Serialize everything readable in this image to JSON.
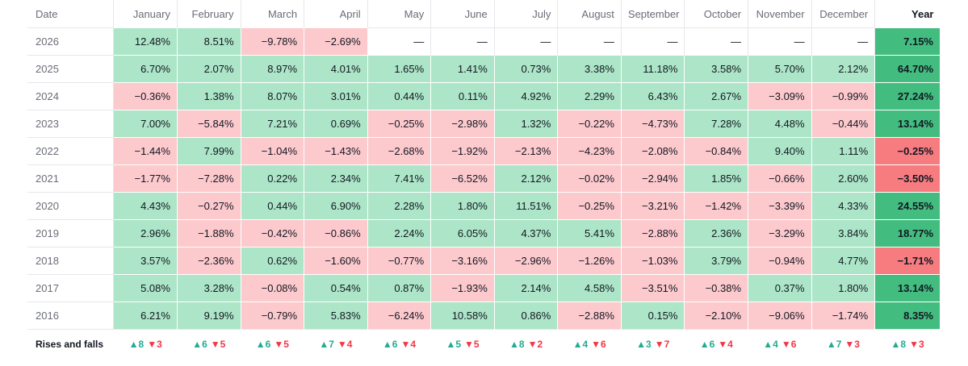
{
  "chart_data": {
    "type": "table",
    "header": {
      "date": "Date",
      "months": [
        "January",
        "February",
        "March",
        "April",
        "May",
        "June",
        "July",
        "August",
        "September",
        "October",
        "November",
        "December"
      ],
      "year": "Year"
    },
    "rows": [
      {
        "year": "2026",
        "months": [
          "12.48%",
          "8.51%",
          "−9.78%",
          "−2.69%",
          "—",
          "—",
          "—",
          "—",
          "—",
          "—",
          "—",
          "—"
        ],
        "total": "7.15%"
      },
      {
        "year": "2025",
        "months": [
          "6.70%",
          "2.07%",
          "8.97%",
          "4.01%",
          "1.65%",
          "1.41%",
          "0.73%",
          "3.38%",
          "11.18%",
          "3.58%",
          "5.70%",
          "2.12%"
        ],
        "total": "64.70%"
      },
      {
        "year": "2024",
        "months": [
          "−0.36%",
          "1.38%",
          "8.07%",
          "3.01%",
          "0.44%",
          "0.11%",
          "4.92%",
          "2.29%",
          "6.43%",
          "2.67%",
          "−3.09%",
          "−0.99%"
        ],
        "total": "27.24%"
      },
      {
        "year": "2023",
        "months": [
          "7.00%",
          "−5.84%",
          "7.21%",
          "0.69%",
          "−0.25%",
          "−2.98%",
          "1.32%",
          "−0.22%",
          "−4.73%",
          "7.28%",
          "4.48%",
          "−0.44%"
        ],
        "total": "13.14%"
      },
      {
        "year": "2022",
        "months": [
          "−1.44%",
          "7.99%",
          "−1.04%",
          "−1.43%",
          "−2.68%",
          "−1.92%",
          "−2.13%",
          "−4.23%",
          "−2.08%",
          "−0.84%",
          "9.40%",
          "1.11%"
        ],
        "total": "−0.25%"
      },
      {
        "year": "2021",
        "months": [
          "−1.77%",
          "−7.28%",
          "0.22%",
          "2.34%",
          "7.41%",
          "−6.52%",
          "2.12%",
          "−0.02%",
          "−2.94%",
          "1.85%",
          "−0.66%",
          "2.60%"
        ],
        "total": "−3.50%"
      },
      {
        "year": "2020",
        "months": [
          "4.43%",
          "−0.27%",
          "0.44%",
          "6.90%",
          "2.28%",
          "1.80%",
          "11.51%",
          "−0.25%",
          "−3.21%",
          "−1.42%",
          "−3.39%",
          "4.33%"
        ],
        "total": "24.55%"
      },
      {
        "year": "2019",
        "months": [
          "2.96%",
          "−1.88%",
          "−0.42%",
          "−0.86%",
          "2.24%",
          "6.05%",
          "4.37%",
          "5.41%",
          "−2.88%",
          "2.36%",
          "−3.29%",
          "3.84%"
        ],
        "total": "18.77%"
      },
      {
        "year": "2018",
        "months": [
          "3.57%",
          "−2.36%",
          "0.62%",
          "−1.60%",
          "−0.77%",
          "−3.16%",
          "−2.96%",
          "−1.26%",
          "−1.03%",
          "3.79%",
          "−0.94%",
          "4.77%"
        ],
        "total": "−1.71%"
      },
      {
        "year": "2017",
        "months": [
          "5.08%",
          "3.28%",
          "−0.08%",
          "0.54%",
          "0.87%",
          "−1.93%",
          "2.14%",
          "4.58%",
          "−3.51%",
          "−0.38%",
          "0.37%",
          "1.80%"
        ],
        "total": "13.14%"
      },
      {
        "year": "2016",
        "months": [
          "6.21%",
          "9.19%",
          "−0.79%",
          "5.83%",
          "−6.24%",
          "10.58%",
          "0.86%",
          "−2.88%",
          "0.15%",
          "−2.10%",
          "−9.06%",
          "−1.74%"
        ],
        "total": "8.35%"
      }
    ],
    "footer": {
      "label": "Rises and falls",
      "rises": [
        "▲8",
        "▲6",
        "▲6",
        "▲7",
        "▲6",
        "▲5",
        "▲8",
        "▲4",
        "▲3",
        "▲6",
        "▲4",
        "▲7",
        "▲8"
      ],
      "falls": [
        "▼3",
        "▼5",
        "▼5",
        "▼4",
        "▼4",
        "▼5",
        "▼2",
        "▼6",
        "▼7",
        "▼4",
        "▼6",
        "▼3",
        "▼3"
      ]
    },
    "colors": {
      "positive_cell": "#ace5c7",
      "negative_cell": "#fcc9cd",
      "positive_year": "#42bd7f",
      "negative_year": "#f77c80",
      "rise": "#22ab94",
      "fall": "#f23645"
    }
  }
}
